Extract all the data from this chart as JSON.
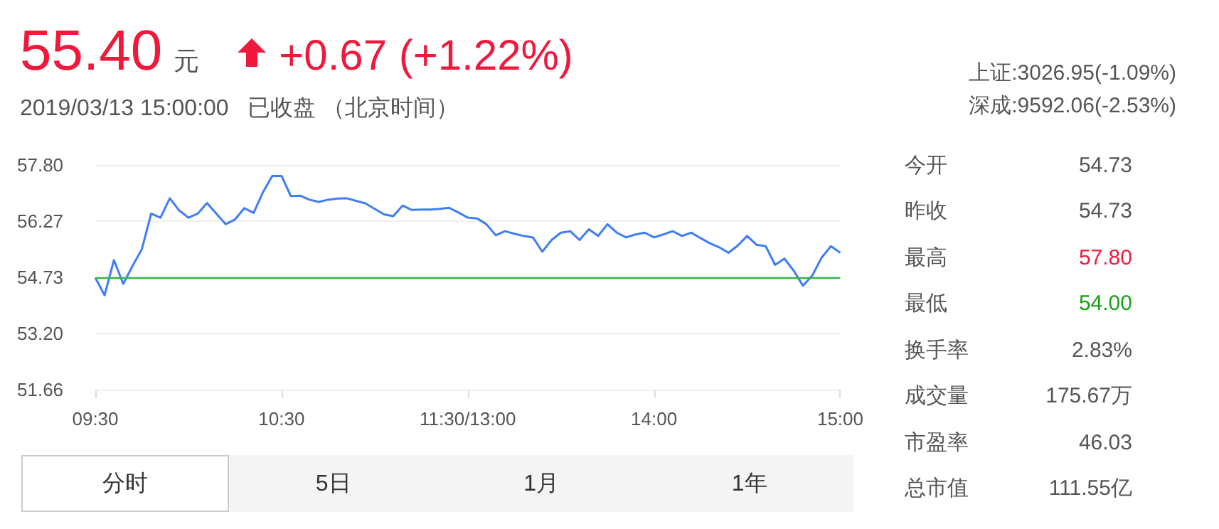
{
  "chart_data": {
    "type": "line",
    "title": "55.40",
    "subtitle": "2019/03/13 15:00:00   已收盘 （北京时间）",
    "annotations": [
      "元",
      "+0.67 (+1.22%)",
      "上证:3026.95(-1.09%)",
      "深成:9592.06(-2.53%)",
      "今开",
      "54.73",
      "昨收",
      "54.73",
      "最高",
      "57.80",
      "最低",
      "54.00",
      "换手率",
      "2.83%",
      "成交量",
      "175.67万",
      "市盈率",
      "46.03",
      "总市值",
      "111.55亿",
      "分时",
      "5日",
      "1月",
      "1年"
    ],
    "categories": [
      "09:30",
      null,
      null,
      null,
      null,
      null,
      null,
      null,
      null,
      null,
      null,
      null,
      null,
      null,
      null,
      null,
      null,
      null,
      null,
      null,
      "10:30",
      null,
      null,
      null,
      null,
      null,
      null,
      null,
      null,
      null,
      null,
      null,
      null,
      null,
      null,
      null,
      null,
      null,
      null,
      null,
      "11:30/13:00",
      null,
      null,
      null,
      null,
      null,
      null,
      null,
      null,
      null,
      null,
      null,
      null,
      null,
      null,
      null,
      null,
      null,
      null,
      null,
      "14:00",
      null,
      null,
      null,
      null,
      null,
      null,
      null,
      null,
      null,
      null,
      null,
      null,
      null,
      null,
      null,
      null,
      null,
      null,
      null,
      "15:00"
    ],
    "series": [
      {
        "color": "#3f7ef5",
        "values": [
          54.72,
          54.24,
          55.2,
          54.55,
          55.04,
          55.5,
          56.47,
          56.36,
          56.89,
          56.56,
          56.36,
          56.47,
          56.76,
          56.47,
          56.18,
          56.31,
          56.62,
          56.49,
          57.05,
          57.5,
          57.5,
          56.95,
          56.96,
          56.85,
          56.79,
          56.85,
          56.88,
          56.89,
          56.82,
          56.75,
          56.6,
          56.45,
          56.4,
          56.69,
          56.57,
          56.58,
          56.58,
          56.6,
          56.63,
          56.5,
          56.36,
          56.34,
          56.18,
          55.88,
          55.99,
          55.92,
          55.86,
          55.82,
          55.43,
          55.75,
          55.95,
          55.99,
          55.75,
          56.04,
          55.86,
          56.18,
          55.95,
          55.82,
          55.9,
          55.95,
          55.82,
          55.9,
          55.99,
          55.86,
          55.95,
          55.8,
          55.66,
          55.55,
          55.4,
          55.6,
          55.86,
          55.62,
          55.58,
          55.07,
          55.24,
          54.91,
          54.5,
          54.78,
          55.27,
          55.58,
          55.4
        ]
      }
    ],
    "ylim": [
      51.66,
      57.8
    ],
    "yticks": [
      {
        "value": 51.66,
        "label": "51.66"
      },
      {
        "value": 53.2,
        "label": "53.20"
      },
      {
        "value": 54.73,
        "label": "54.73"
      },
      {
        "value": 56.27,
        "label": "56.27"
      },
      {
        "value": 57.8,
        "label": "57.80"
      }
    ],
    "ref_lines": [
      {
        "axis": "y",
        "value": 54.73,
        "color": "#35b44a"
      }
    ],
    "grid": "y",
    "marker": "none",
    "line_style": "solid"
  }
}
